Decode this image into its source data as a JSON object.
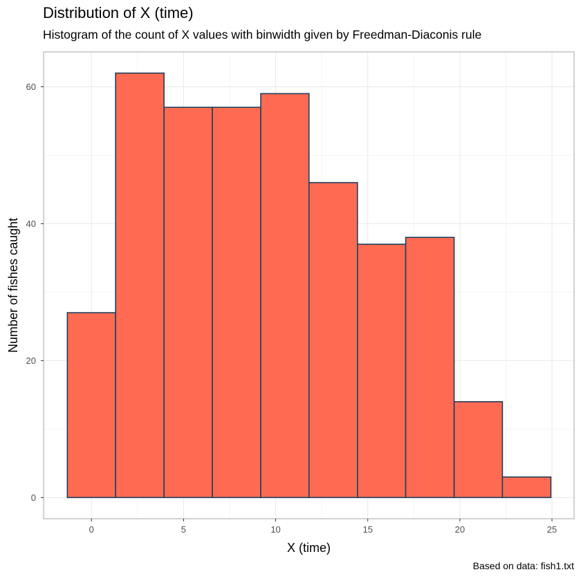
{
  "chart_data": {
    "type": "bar",
    "title": "Distribution of X (time)",
    "subtitle": "Histogram of the count of X values with binwidth given by Freedman-Diaconis rule",
    "caption": "Based on data: fish1.txt",
    "xlabel": "X (time)",
    "ylabel": "Number of fishes caught",
    "bins": [
      {
        "start": -1.31,
        "end": 1.31,
        "count": 27
      },
      {
        "start": 1.31,
        "end": 3.94,
        "count": 62
      },
      {
        "start": 3.94,
        "end": 6.56,
        "count": 57
      },
      {
        "start": 6.56,
        "end": 9.19,
        "count": 57
      },
      {
        "start": 9.19,
        "end": 11.81,
        "count": 59
      },
      {
        "start": 11.81,
        "end": 14.44,
        "count": 46
      },
      {
        "start": 14.44,
        "end": 17.06,
        "count": 37
      },
      {
        "start": 17.06,
        "end": 19.69,
        "count": 38
      },
      {
        "start": 19.69,
        "end": 22.31,
        "count": 14
      },
      {
        "start": 22.31,
        "end": 24.94,
        "count": 3
      }
    ],
    "xlim": [
      -2.6,
      26.2
    ],
    "ylim": [
      -3.1,
      65.1
    ],
    "xticks": [
      0,
      5,
      10,
      15,
      20,
      25
    ],
    "yticks": [
      0,
      20,
      40,
      60
    ],
    "grid": true,
    "colors": {
      "fill": "#ff6b52",
      "outline": "#1c3f5b",
      "grid": "#e8e8e8",
      "panel_border": "#b3b3b3"
    }
  }
}
